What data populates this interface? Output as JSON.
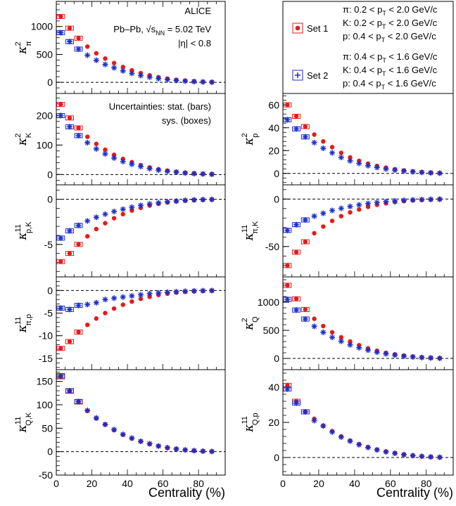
{
  "figure": {
    "xlabel": "Centrality (%)",
    "annotations": {
      "experiment": "ALICE",
      "system": "Pb–Pb, √s",
      "system_sub": "NN",
      "energy": " = 5.02 TeV",
      "eta": "|η| < 0.8",
      "uncert_stat": "Uncertainties: stat. (bars)",
      "uncert_sys": "sys. (boxes)"
    },
    "legend": [
      {
        "name": "Set 1",
        "marker": "circle",
        "color": "#e8191a",
        "lines": [
          "π: 0.2 < p",
          "K: 0.2 < p",
          "p: 0.4 < p"
        ],
        "ranges": [
          "< 2.0 GeV/c",
          "< 2.0 GeV/c",
          "< 2.0 GeV/c"
        ]
      },
      {
        "name": "Set 2",
        "marker": "star",
        "color": "#1c2ec9",
        "lines": [
          "π: 0.4 < p",
          "K: 0.4 < p",
          "p: 0.4 < p"
        ],
        "ranges": [
          "< 1.6 GeV/c",
          "< 1.6 GeV/c",
          "< 1.6 GeV/c"
        ]
      }
    ],
    "pt_sub": "T",
    "colors": {
      "set1": "#e8191a",
      "set2": "#1c2ec9"
    }
  },
  "chart_data": [
    {
      "id": "k2pi",
      "type": "scatter",
      "ylabel": "κ",
      "ylabel_sup": "2",
      "ylabel_sub": "π",
      "xlim": [
        0,
        95
      ],
      "ylim": [
        -200,
        1450
      ],
      "yticks": [
        0,
        500,
        1000
      ],
      "x": [
        2.5,
        7.5,
        12.5,
        17.5,
        22.5,
        27.5,
        32.5,
        37.5,
        42.5,
        47.5,
        52.5,
        57.5,
        62.5,
        67.5,
        72.5,
        77.5,
        82.5,
        87.5
      ],
      "series": [
        {
          "name": "Set 1",
          "values": [
            1180,
            970,
            790,
            640,
            520,
            425,
            345,
            275,
            215,
            165,
            125,
            92,
            66,
            45,
            30,
            18,
            9,
            4
          ]
        },
        {
          "name": "Set 2",
          "values": [
            890,
            730,
            595,
            485,
            395,
            320,
            260,
            205,
            160,
            122,
            92,
            67,
            48,
            33,
            22,
            13,
            7,
            3
          ]
        }
      ]
    },
    {
      "id": "k2K",
      "type": "scatter",
      "ylabel": "κ",
      "ylabel_sup": "2",
      "ylabel_sub": "K",
      "xlim": [
        0,
        95
      ],
      "ylim": [
        -35,
        275
      ],
      "yticks": [
        0,
        100,
        200
      ],
      "x": [
        2.5,
        7.5,
        12.5,
        17.5,
        22.5,
        27.5,
        32.5,
        37.5,
        42.5,
        47.5,
        52.5,
        57.5,
        62.5,
        67.5,
        72.5,
        77.5,
        82.5,
        87.5
      ],
      "series": [
        {
          "name": "Set 1",
          "values": [
            238,
            192,
            158,
            128,
            104,
            84,
            67,
            53,
            42,
            32,
            24,
            18,
            13,
            9,
            6,
            4,
            2,
            1
          ]
        },
        {
          "name": "Set 2",
          "values": [
            200,
            162,
            132,
            108,
            87,
            70,
            56,
            44,
            35,
            27,
            20,
            15,
            11,
            8,
            5,
            3,
            2,
            1
          ]
        }
      ]
    },
    {
      "id": "k11pK",
      "type": "scatter",
      "ylabel": "κ",
      "ylabel_sup": "11",
      "ylabel_sub": "p,K",
      "xlim": [
        0,
        95
      ],
      "ylim": [
        -8.6,
        1.6
      ],
      "yticks": [
        -5,
        0
      ],
      "x": [
        2.5,
        7.5,
        12.5,
        17.5,
        22.5,
        27.5,
        32.5,
        37.5,
        42.5,
        47.5,
        52.5,
        57.5,
        62.5,
        67.5,
        72.5,
        77.5,
        82.5,
        87.5
      ],
      "series": [
        {
          "name": "Set 1",
          "values": [
            -6.9,
            -6.0,
            -5.0,
            -4.1,
            -3.3,
            -2.65,
            -2.1,
            -1.65,
            -1.25,
            -0.95,
            -0.7,
            -0.5,
            -0.35,
            -0.24,
            -0.15,
            -0.09,
            -0.05,
            -0.02
          ]
        },
        {
          "name": "Set 2",
          "values": [
            -4.3,
            -3.5,
            -2.9,
            -2.4,
            -2.0,
            -1.65,
            -1.35,
            -1.1,
            -0.88,
            -0.68,
            -0.52,
            -0.39,
            -0.28,
            -0.19,
            -0.12,
            -0.07,
            -0.04,
            -0.02
          ]
        }
      ]
    },
    {
      "id": "k11piP",
      "type": "scatter",
      "ylabel": "κ",
      "ylabel_sup": "11",
      "ylabel_sub": "π,p",
      "xlim": [
        0,
        95
      ],
      "ylim": [
        -17.5,
        3
      ],
      "yticks": [
        -15,
        -10,
        -5,
        0
      ],
      "x": [
        2.5,
        7.5,
        12.5,
        17.5,
        22.5,
        27.5,
        32.5,
        37.5,
        42.5,
        47.5,
        52.5,
        57.5,
        62.5,
        67.5,
        72.5,
        77.5,
        82.5,
        87.5
      ],
      "series": [
        {
          "name": "Set 1",
          "values": [
            -12.8,
            -11.3,
            -9.2,
            -7.6,
            -6.2,
            -5.0,
            -4.0,
            -3.15,
            -2.45,
            -1.85,
            -1.4,
            -1.0,
            -0.7,
            -0.47,
            -0.3,
            -0.18,
            -0.1,
            -0.04
          ]
        },
        {
          "name": "Set 2",
          "values": [
            -3.9,
            -4.2,
            -3.3,
            -3.1,
            -2.7,
            -2.0,
            -1.7,
            -1.45,
            -1.2,
            -0.95,
            -0.72,
            -0.54,
            -0.39,
            -0.27,
            -0.17,
            -0.1,
            -0.05,
            -0.02
          ]
        }
      ]
    },
    {
      "id": "k11QK",
      "type": "scatter",
      "ylabel": "κ",
      "ylabel_sup": "11",
      "ylabel_sub": "Q,K",
      "xlim": [
        0,
        95
      ],
      "ylim": [
        -50,
        175
      ],
      "yticks": [
        -50,
        0,
        50,
        100,
        150
      ],
      "x": [
        2.5,
        7.5,
        12.5,
        17.5,
        22.5,
        27.5,
        32.5,
        37.5,
        42.5,
        47.5,
        52.5,
        57.5,
        62.5,
        67.5,
        72.5,
        77.5,
        82.5,
        87.5
      ],
      "series": [
        {
          "name": "Set 1",
          "values": [
            160,
            129,
            106,
            87,
            71,
            58,
            46,
            36,
            28,
            22,
            16,
            12,
            8,
            5.5,
            3.5,
            2,
            1,
            0.4
          ]
        },
        {
          "name": "Set 2",
          "values": [
            162,
            130,
            107,
            88,
            72,
            58,
            47,
            37,
            29,
            22,
            17,
            12,
            8.5,
            5.8,
            3.7,
            2.2,
            1.1,
            0.4
          ]
        }
      ]
    },
    {
      "id": "k2p",
      "type": "scatter",
      "ylabel": "κ",
      "ylabel_sup": "2",
      "ylabel_sub": "p",
      "xlim": [
        0,
        95
      ],
      "ylim": [
        -10,
        70
      ],
      "yticks": [
        0,
        20,
        40,
        60
      ],
      "x": [
        2.5,
        7.5,
        12.5,
        17.5,
        22.5,
        27.5,
        32.5,
        37.5,
        42.5,
        47.5,
        52.5,
        57.5,
        62.5,
        67.5,
        72.5,
        77.5,
        82.5,
        87.5
      ],
      "series": [
        {
          "name": "Set 1",
          "values": [
            60,
            50,
            41,
            34,
            28,
            23,
            18,
            14,
            11,
            8.6,
            6.6,
            5,
            3.7,
            2.6,
            1.8,
            1.1,
            0.6,
            0.3
          ]
        },
        {
          "name": "Set 2",
          "values": [
            47,
            39,
            32,
            27,
            22,
            18,
            14,
            11,
            8.8,
            6.8,
            5.2,
            3.9,
            2.9,
            2.1,
            1.4,
            0.9,
            0.5,
            0.2
          ]
        }
      ]
    },
    {
      "id": "k11piK",
      "type": "scatter",
      "ylabel": "κ",
      "ylabel_sup": "11",
      "ylabel_sub": "π,K",
      "xlim": [
        0,
        95
      ],
      "ylim": [
        -82,
        15
      ],
      "yticks": [
        -50,
        0
      ],
      "x": [
        2.5,
        7.5,
        12.5,
        17.5,
        22.5,
        27.5,
        32.5,
        37.5,
        42.5,
        47.5,
        52.5,
        57.5,
        62.5,
        67.5,
        72.5,
        77.5,
        82.5,
        87.5
      ],
      "series": [
        {
          "name": "Set 1",
          "values": [
            -70,
            -56,
            -45,
            -36,
            -29,
            -23,
            -18,
            -14,
            -11,
            -8.2,
            -6.1,
            -4.5,
            -3.2,
            -2.2,
            -1.4,
            -0.9,
            -0.5,
            -0.2
          ]
        },
        {
          "name": "Set 2",
          "values": [
            -33,
            -27,
            -22,
            -18,
            -15,
            -12,
            -9.8,
            -7.8,
            -6.1,
            -4.7,
            -3.6,
            -2.7,
            -1.9,
            -1.3,
            -0.85,
            -0.5,
            -0.27,
            -0.1
          ]
        }
      ]
    },
    {
      "id": "k2Q",
      "type": "scatter",
      "ylabel": "κ",
      "ylabel_sup": "2",
      "ylabel_sub": "Q",
      "xlim": [
        0,
        95
      ],
      "ylim": [
        -200,
        1450
      ],
      "yticks": [
        0,
        500,
        1000
      ],
      "x": [
        2.5,
        7.5,
        12.5,
        17.5,
        22.5,
        27.5,
        32.5,
        37.5,
        42.5,
        47.5,
        52.5,
        57.5,
        62.5,
        67.5,
        72.5,
        77.5,
        82.5,
        87.5
      ],
      "series": [
        {
          "name": "Set 1",
          "values": [
            1300,
            1060,
            870,
            705,
            575,
            465,
            375,
            300,
            235,
            180,
            137,
            100,
            72,
            50,
            33,
            20,
            10,
            4
          ]
        },
        {
          "name": "Set 2",
          "values": [
            1050,
            860,
            700,
            570,
            465,
            375,
            305,
            242,
            190,
            146,
            110,
            81,
            58,
            40,
            26,
            16,
            8,
            3
          ]
        }
      ]
    },
    {
      "id": "k11Qp",
      "type": "scatter",
      "ylabel": "κ",
      "ylabel_sup": "11",
      "ylabel_sub": "Q,p",
      "xlim": [
        0,
        95
      ],
      "ylim": [
        -10,
        50
      ],
      "yticks": [
        0,
        20,
        40
      ],
      "x": [
        2.5,
        7.5,
        12.5,
        17.5,
        22.5,
        27.5,
        32.5,
        37.5,
        42.5,
        47.5,
        52.5,
        57.5,
        62.5,
        67.5,
        72.5,
        77.5,
        82.5,
        87.5
      ],
      "series": [
        {
          "name": "Set 1",
          "values": [
            41,
            32,
            26,
            22,
            18,
            15,
            12,
            9.6,
            7.6,
            5.9,
            4.5,
            3.4,
            2.5,
            1.7,
            1.1,
            0.7,
            0.35,
            0.15
          ]
        },
        {
          "name": "Set 2",
          "values": [
            39,
            31,
            26,
            21,
            18,
            14.5,
            11.6,
            9.3,
            7.3,
            5.7,
            4.3,
            3.2,
            2.4,
            1.6,
            1.05,
            0.65,
            0.33,
            0.13
          ]
        }
      ]
    }
  ]
}
